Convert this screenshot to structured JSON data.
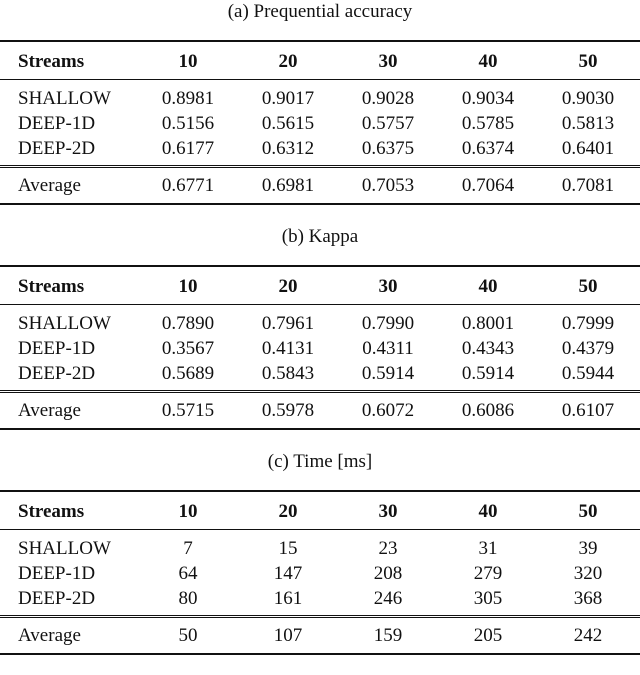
{
  "tables": [
    {
      "caption": "(a) Prequential accuracy",
      "header": [
        "Streams",
        "10",
        "20",
        "30",
        "40",
        "50"
      ],
      "rows": [
        [
          "SHALLOW",
          "0.8981",
          "0.9017",
          "0.9028",
          "0.9034",
          "0.9030"
        ],
        [
          "DEEP-1D",
          "0.5156",
          "0.5615",
          "0.5757",
          "0.5785",
          "0.5813"
        ],
        [
          "DEEP-2D",
          "0.6177",
          "0.6312",
          "0.6375",
          "0.6374",
          "0.6401"
        ]
      ],
      "average": [
        "Average",
        "0.6771",
        "0.6981",
        "0.7053",
        "0.7064",
        "0.7081"
      ]
    },
    {
      "caption": "(b) Kappa",
      "header": [
        "Streams",
        "10",
        "20",
        "30",
        "40",
        "50"
      ],
      "rows": [
        [
          "SHALLOW",
          "0.7890",
          "0.7961",
          "0.7990",
          "0.8001",
          "0.7999"
        ],
        [
          "DEEP-1D",
          "0.3567",
          "0.4131",
          "0.4311",
          "0.4343",
          "0.4379"
        ],
        [
          "DEEP-2D",
          "0.5689",
          "0.5843",
          "0.5914",
          "0.5914",
          "0.5944"
        ]
      ],
      "average": [
        "Average",
        "0.5715",
        "0.5978",
        "0.6072",
        "0.6086",
        "0.6107"
      ]
    },
    {
      "caption": "(c) Time [ms]",
      "header": [
        "Streams",
        "10",
        "20",
        "30",
        "40",
        "50"
      ],
      "rows": [
        [
          "SHALLOW",
          "7",
          "15",
          "23",
          "31",
          "39"
        ],
        [
          "DEEP-1D",
          "64",
          "147",
          "208",
          "279",
          "320"
        ],
        [
          "DEEP-2D",
          "80",
          "161",
          "246",
          "305",
          "368"
        ]
      ],
      "average": [
        "Average",
        "50",
        "107",
        "159",
        "205",
        "242"
      ]
    }
  ]
}
